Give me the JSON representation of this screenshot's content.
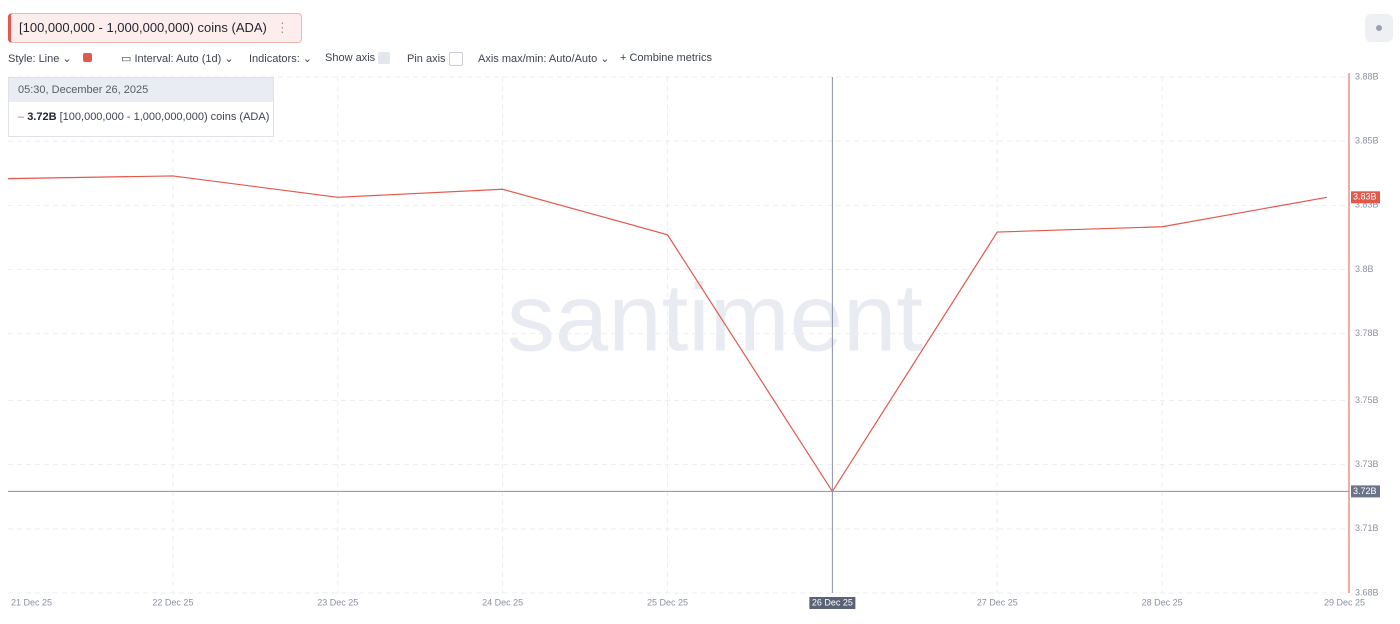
{
  "ui": {
    "toolbar": [
      "Style: Line",
      "Interval: Auto (1d)",
      "Indicators:",
      "Show axis",
      "Pin axis",
      "Axis max/min: Auto/Auto",
      "Combine metrics"
    ],
    "tooltip_time": "05:30, December 26, 2025",
    "watermark": "santiment"
  },
  "chart_data": {
    "type": "line",
    "categories": [
      "21 Dec 25",
      "22 Dec 25",
      "23 Dec 25",
      "24 Dec 25",
      "25 Dec 25",
      "26 Dec 25",
      "27 Dec 25",
      "28 Dec 25",
      "29 Dec 25"
    ],
    "series": [
      {
        "name": "[100,000,000 - 1,000,000,000) coins (ADA)",
        "color": "#e4574c",
        "values": [
          3.837,
          3.838,
          3.83,
          3.833,
          3.816,
          3.72,
          3.817,
          3.819,
          3.83
        ],
        "value_labels": [
          null,
          null,
          null,
          null,
          null,
          "3.72B",
          null,
          null,
          "3.83B"
        ]
      }
    ],
    "ylim": [
      3.682,
      3.875
    ],
    "yticks": [
      {
        "value": 3.875,
        "label": "3.88B"
      },
      {
        "value": 3.851,
        "label": "3.85B"
      },
      {
        "value": 3.827,
        "label": "3.83B"
      },
      {
        "value": 3.803,
        "label": "3.8B"
      },
      {
        "value": 3.779,
        "label": "3.78B"
      },
      {
        "value": 3.754,
        "label": "3.75B"
      },
      {
        "value": 3.73,
        "label": "3.73B"
      },
      {
        "value": 3.706,
        "label": "3.71B"
      },
      {
        "value": 3.682,
        "label": "3.68B"
      }
    ],
    "grid": true,
    "highlight_index": 5
  }
}
